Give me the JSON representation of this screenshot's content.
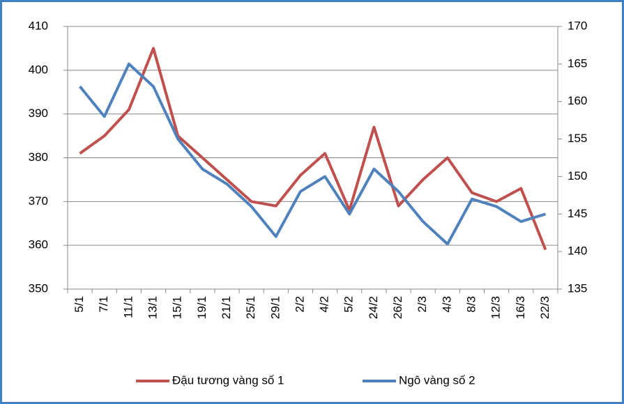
{
  "chart_data": {
    "type": "line",
    "categories": [
      "5/1",
      "7/1",
      "11/1",
      "13/1",
      "15/1",
      "19/1",
      "21/1",
      "25/1",
      "29/1",
      "2/2",
      "4/2",
      "5/2",
      "24/2",
      "26/2",
      "2/3",
      "4/3",
      "8/3",
      "12/3",
      "16/3",
      "22/3"
    ],
    "series": [
      {
        "name": "Đậu tương vàng số 1",
        "color": "#c0504d",
        "values": [
          381,
          385,
          391,
          405,
          385,
          380,
          375,
          370,
          369,
          376,
          381,
          368,
          387,
          369,
          375,
          380,
          372,
          370,
          373,
          359
        ]
      },
      {
        "name": "Ngô vàng số 2",
        "color": "#4f81bd",
        "axis": "y2",
        "values": [
          162,
          158,
          165,
          162,
          155,
          151,
          149,
          146,
          142,
          148,
          150,
          145,
          151,
          148,
          144,
          141,
          147,
          146,
          144,
          145
        ]
      }
    ],
    "ylim": [
      350,
      410
    ],
    "yticks": [
      350,
      360,
      370,
      380,
      390,
      400,
      410
    ],
    "y2lim": [
      135,
      170
    ],
    "y2ticks": [
      135,
      140,
      145,
      150,
      155,
      160,
      165,
      170
    ],
    "grid": true,
    "legend": "bottom"
  }
}
